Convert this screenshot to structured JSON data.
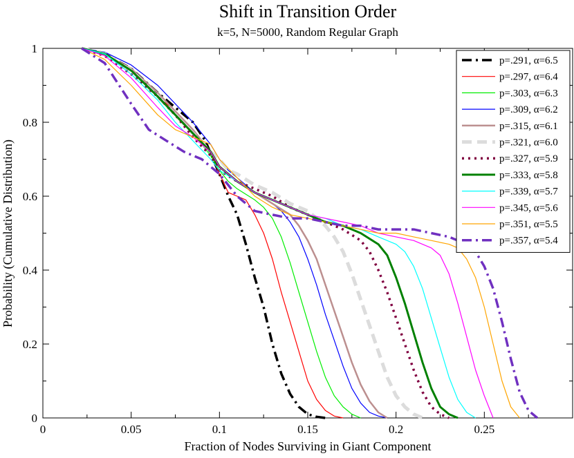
{
  "chart_data": {
    "type": "line",
    "title": "Shift in Transition Order",
    "subtitle": "k=5, N=5000, Random Regular Graph",
    "xlabel": "Fraction of Nodes Surviving in Giant Component",
    "ylabel": "Probability (Cumulative Distribution)",
    "xlim": [
      0,
      0.3
    ],
    "ylim": [
      0,
      1
    ],
    "xticks": [
      0,
      0.05,
      0.1,
      0.15,
      0.2,
      0.25
    ],
    "xtick_labels": [
      "0",
      "0.05",
      "0.1",
      "0.15",
      "0.2",
      "0.25"
    ],
    "yticks": [
      0,
      0.2,
      0.4,
      0.6,
      0.8,
      1
    ],
    "ytick_labels": [
      "0",
      "0.2",
      "0.4",
      "0.6",
      "0.8",
      "1"
    ],
    "grid": false,
    "legend_position": "top-right",
    "series": [
      {
        "name": "p=.291, α=6.5",
        "color": "#000000",
        "style": "dash-dot",
        "width": 3.5,
        "x": [
          0.022,
          0.035,
          0.05,
          0.065,
          0.075,
          0.085,
          0.092,
          0.1,
          0.105,
          0.11,
          0.115,
          0.12,
          0.125,
          0.13,
          0.135,
          0.14,
          0.145,
          0.15,
          0.155,
          0.16
        ],
        "y": [
          1.0,
          0.985,
          0.945,
          0.88,
          0.84,
          0.8,
          0.75,
          0.66,
          0.6,
          0.55,
          0.47,
          0.38,
          0.3,
          0.2,
          0.12,
          0.065,
          0.03,
          0.01,
          0.003,
          0.0
        ]
      },
      {
        "name": "p=.297, α=6.4",
        "color": "#ff0000",
        "style": "solid",
        "width": 1.2,
        "x": [
          0.022,
          0.035,
          0.05,
          0.065,
          0.075,
          0.085,
          0.095,
          0.1,
          0.105,
          0.11,
          0.115,
          0.12,
          0.125,
          0.13,
          0.135,
          0.14,
          0.145,
          0.15,
          0.155,
          0.16,
          0.165,
          0.17
        ],
        "y": [
          1.0,
          0.985,
          0.94,
          0.87,
          0.83,
          0.78,
          0.72,
          0.66,
          0.61,
          0.6,
          0.59,
          0.55,
          0.5,
          0.43,
          0.34,
          0.26,
          0.18,
          0.1,
          0.05,
          0.02,
          0.005,
          0.0
        ]
      },
      {
        "name": "p=.303, α=6.3",
        "color": "#00ee00",
        "style": "solid",
        "width": 1.2,
        "x": [
          0.022,
          0.035,
          0.05,
          0.065,
          0.075,
          0.085,
          0.095,
          0.1,
          0.105,
          0.11,
          0.12,
          0.125,
          0.13,
          0.135,
          0.14,
          0.145,
          0.15,
          0.155,
          0.16,
          0.165,
          0.17,
          0.175,
          0.18
        ],
        "y": [
          1.0,
          0.985,
          0.94,
          0.87,
          0.82,
          0.77,
          0.71,
          0.67,
          0.64,
          0.62,
          0.59,
          0.57,
          0.54,
          0.49,
          0.42,
          0.34,
          0.26,
          0.18,
          0.11,
          0.06,
          0.03,
          0.01,
          0.0
        ]
      },
      {
        "name": "p=.309, α=6.2",
        "color": "#0000ff",
        "style": "solid",
        "width": 1.2,
        "x": [
          0.022,
          0.035,
          0.05,
          0.065,
          0.075,
          0.085,
          0.095,
          0.1,
          0.105,
          0.11,
          0.12,
          0.13,
          0.135,
          0.14,
          0.145,
          0.15,
          0.155,
          0.16,
          0.165,
          0.17,
          0.175,
          0.18,
          0.185,
          0.19,
          0.195
        ],
        "y": [
          1.0,
          0.99,
          0.955,
          0.9,
          0.85,
          0.8,
          0.74,
          0.7,
          0.67,
          0.65,
          0.61,
          0.58,
          0.56,
          0.53,
          0.49,
          0.43,
          0.36,
          0.28,
          0.21,
          0.14,
          0.08,
          0.04,
          0.015,
          0.005,
          0.0
        ]
      },
      {
        "name": "p=.315, α=6.1",
        "color": "#bc8f8f",
        "style": "solid",
        "width": 2.5,
        "x": [
          0.022,
          0.035,
          0.05,
          0.065,
          0.075,
          0.085,
          0.095,
          0.1,
          0.11,
          0.12,
          0.13,
          0.14,
          0.145,
          0.15,
          0.155,
          0.16,
          0.165,
          0.17,
          0.175,
          0.18,
          0.185,
          0.19,
          0.195
        ],
        "y": [
          1.0,
          0.985,
          0.945,
          0.88,
          0.83,
          0.78,
          0.72,
          0.68,
          0.64,
          0.61,
          0.58,
          0.55,
          0.52,
          0.48,
          0.43,
          0.36,
          0.29,
          0.22,
          0.15,
          0.09,
          0.045,
          0.015,
          0.0
        ]
      },
      {
        "name": "p=.321, α=6.0",
        "color": "#dcdcdc",
        "style": "dash",
        "width": 5,
        "x": [
          0.022,
          0.035,
          0.05,
          0.065,
          0.075,
          0.085,
          0.095,
          0.1,
          0.105,
          0.11,
          0.12,
          0.13,
          0.14,
          0.15,
          0.16,
          0.165,
          0.17,
          0.175,
          0.18,
          0.185,
          0.19,
          0.195,
          0.2,
          0.205,
          0.21,
          0.215
        ],
        "y": [
          1.0,
          0.985,
          0.94,
          0.87,
          0.82,
          0.77,
          0.72,
          0.7,
          0.67,
          0.66,
          0.63,
          0.61,
          0.58,
          0.56,
          0.52,
          0.49,
          0.45,
          0.39,
          0.32,
          0.25,
          0.18,
          0.11,
          0.06,
          0.03,
          0.01,
          0.0
        ]
      },
      {
        "name": "p=.327, α=5.9",
        "color": "#800040",
        "style": "dot",
        "width": 3.5,
        "x": [
          0.022,
          0.035,
          0.05,
          0.065,
          0.075,
          0.085,
          0.095,
          0.1,
          0.11,
          0.12,
          0.13,
          0.14,
          0.15,
          0.16,
          0.17,
          0.18,
          0.185,
          0.19,
          0.195,
          0.2,
          0.205,
          0.21,
          0.215,
          0.22,
          0.225,
          0.23
        ],
        "y": [
          1.0,
          0.98,
          0.93,
          0.87,
          0.82,
          0.76,
          0.71,
          0.67,
          0.64,
          0.62,
          0.6,
          0.57,
          0.55,
          0.53,
          0.51,
          0.48,
          0.45,
          0.4,
          0.34,
          0.27,
          0.2,
          0.13,
          0.07,
          0.03,
          0.01,
          0.0
        ]
      },
      {
        "name": "p=.333, α=5.8",
        "color": "#008000",
        "style": "solid",
        "width": 3,
        "x": [
          0.022,
          0.035,
          0.05,
          0.065,
          0.075,
          0.085,
          0.095,
          0.1,
          0.11,
          0.12,
          0.13,
          0.14,
          0.15,
          0.16,
          0.17,
          0.18,
          0.19,
          0.195,
          0.2,
          0.205,
          0.21,
          0.215,
          0.22,
          0.225,
          0.23,
          0.235
        ],
        "y": [
          1.0,
          0.985,
          0.94,
          0.87,
          0.82,
          0.77,
          0.72,
          0.68,
          0.64,
          0.61,
          0.59,
          0.57,
          0.55,
          0.53,
          0.52,
          0.5,
          0.47,
          0.44,
          0.38,
          0.31,
          0.23,
          0.15,
          0.08,
          0.03,
          0.01,
          0.0
        ]
      },
      {
        "name": "p=.339, α=5.7",
        "color": "#00ffff",
        "style": "solid",
        "width": 1.2,
        "x": [
          0.022,
          0.035,
          0.05,
          0.065,
          0.075,
          0.085,
          0.095,
          0.1,
          0.11,
          0.12,
          0.13,
          0.14,
          0.15,
          0.16,
          0.17,
          0.18,
          0.19,
          0.2,
          0.205,
          0.21,
          0.215,
          0.22,
          0.225,
          0.23,
          0.235,
          0.24,
          0.245
        ],
        "y": [
          1.0,
          0.985,
          0.93,
          0.86,
          0.8,
          0.75,
          0.7,
          0.67,
          0.64,
          0.61,
          0.59,
          0.57,
          0.55,
          0.54,
          0.52,
          0.51,
          0.49,
          0.47,
          0.45,
          0.41,
          0.35,
          0.27,
          0.19,
          0.11,
          0.05,
          0.015,
          0.0
        ]
      },
      {
        "name": "p=.345, α=5.6",
        "color": "#ff00ff",
        "style": "solid",
        "width": 1.2,
        "x": [
          0.022,
          0.035,
          0.05,
          0.065,
          0.075,
          0.085,
          0.095,
          0.1,
          0.11,
          0.12,
          0.13,
          0.14,
          0.15,
          0.16,
          0.17,
          0.18,
          0.19,
          0.2,
          0.21,
          0.22,
          0.225,
          0.23,
          0.235,
          0.24,
          0.245,
          0.25,
          0.255
        ],
        "y": [
          1.0,
          0.98,
          0.92,
          0.84,
          0.79,
          0.76,
          0.72,
          0.68,
          0.64,
          0.61,
          0.59,
          0.57,
          0.55,
          0.54,
          0.53,
          0.52,
          0.5,
          0.49,
          0.48,
          0.46,
          0.44,
          0.39,
          0.31,
          0.22,
          0.13,
          0.06,
          0.0
        ]
      },
      {
        "name": "p=.351, α=5.5",
        "color": "#ffa500",
        "style": "solid",
        "width": 1.2,
        "x": [
          0.022,
          0.035,
          0.05,
          0.065,
          0.075,
          0.085,
          0.095,
          0.1,
          0.11,
          0.12,
          0.13,
          0.14,
          0.15,
          0.16,
          0.17,
          0.18,
          0.19,
          0.2,
          0.21,
          0.22,
          0.23,
          0.235,
          0.24,
          0.245,
          0.25,
          0.255,
          0.26,
          0.265,
          0.27
        ],
        "y": [
          1.0,
          0.97,
          0.9,
          0.82,
          0.78,
          0.76,
          0.74,
          0.7,
          0.65,
          0.6,
          0.57,
          0.55,
          0.54,
          0.53,
          0.52,
          0.51,
          0.5,
          0.5,
          0.49,
          0.48,
          0.47,
          0.46,
          0.43,
          0.38,
          0.3,
          0.2,
          0.1,
          0.03,
          0.0
        ]
      },
      {
        "name": "p=.357, α=5.4",
        "color": "#7030c0",
        "style": "dash-dot",
        "width": 3.5,
        "x": [
          0.022,
          0.035,
          0.05,
          0.06,
          0.07,
          0.08,
          0.09,
          0.1,
          0.11,
          0.12,
          0.13,
          0.14,
          0.15,
          0.16,
          0.17,
          0.18,
          0.19,
          0.2,
          0.21,
          0.22,
          0.23,
          0.24,
          0.245,
          0.25,
          0.255,
          0.26,
          0.265,
          0.27,
          0.275,
          0.28
        ],
        "y": [
          1.0,
          0.96,
          0.85,
          0.78,
          0.75,
          0.72,
          0.7,
          0.66,
          0.6,
          0.56,
          0.55,
          0.54,
          0.54,
          0.53,
          0.52,
          0.52,
          0.51,
          0.51,
          0.51,
          0.5,
          0.49,
          0.47,
          0.45,
          0.41,
          0.35,
          0.26,
          0.16,
          0.07,
          0.02,
          0.0
        ]
      }
    ]
  }
}
